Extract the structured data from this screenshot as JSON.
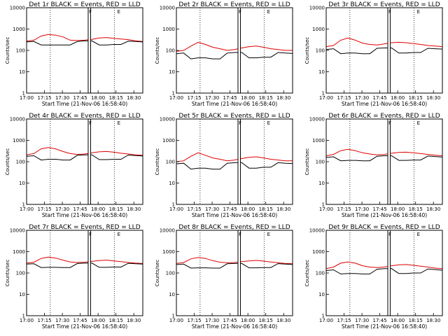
{
  "chart_data": [
    {
      "type": "line",
      "title": "Det 1r BLACK = Events, RED = LLD",
      "xlabel": "Start Time (21-Nov-06 16:58:40)",
      "ylabel": "Counts/sec",
      "yscale": "log",
      "ylim": [
        1,
        10000
      ],
      "xlim": [
        0,
        100
      ],
      "x_ticks": [
        "17:00",
        "17:15",
        "17:30",
        "17:45",
        "18:00",
        "18:15",
        "18:30"
      ],
      "y_ticks": [
        "1",
        "10",
        "100",
        "1000",
        "10000"
      ],
      "markers": [
        "F",
        "E"
      ],
      "series": [
        {
          "color": "#e00000",
          "values": [
            270,
            300,
            470,
            560,
            520,
            430,
            300,
            290,
            300,
            330,
            380,
            400,
            370,
            340,
            320,
            280,
            260
          ]
        },
        {
          "color": "#000000",
          "values": [
            250,
            260,
            180,
            180,
            180,
            180,
            180,
            260,
            280,
            280,
            180,
            180,
            190,
            190,
            270,
            260,
            250
          ]
        }
      ]
    },
    {
      "type": "line",
      "title": "Det 2r BLACK = Events, RED = LLD",
      "xlabel": "Start Time (21-Nov-06 16:58:40)",
      "ylabel": "Counts/sec",
      "yscale": "log",
      "ylim": [
        1,
        10000
      ],
      "xlim": [
        0,
        100
      ],
      "x_ticks": [
        "17:00",
        "17:15",
        "17:30",
        "17:45",
        "18:00",
        "18:15",
        "18:30"
      ],
      "y_ticks": [
        "1",
        "10",
        "100",
        "1000",
        "10000"
      ],
      "markers": [
        "F",
        "E"
      ],
      "series": [
        {
          "color": "#e00000",
          "values": [
            90,
            100,
            160,
            240,
            190,
            140,
            120,
            100,
            110,
            130,
            150,
            160,
            140,
            120,
            110,
            100,
            100
          ]
        },
        {
          "color": "#000000",
          "values": [
            70,
            75,
            40,
            45,
            45,
            40,
            40,
            75,
            80,
            80,
            45,
            45,
            48,
            48,
            80,
            75,
            72
          ]
        }
      ]
    },
    {
      "type": "line",
      "title": "Det 3r BLACK = Events, RED = LLD",
      "xlabel": "Start Time (21-Nov-06 16:58:40)",
      "ylabel": "Counts/sec",
      "yscale": "log",
      "ylim": [
        1,
        10000
      ],
      "xlim": [
        0,
        100
      ],
      "x_ticks": [
        "17:00",
        "17:15",
        "17:30",
        "17:45",
        "18:00",
        "18:15",
        "18:30"
      ],
      "y_ticks": [
        "1",
        "10",
        "100",
        "1000",
        "10000"
      ],
      "markers": [
        "F",
        "E"
      ],
      "series": [
        {
          "color": "#e00000",
          "values": [
            150,
            170,
            300,
            380,
            300,
            220,
            190,
            180,
            200,
            230,
            240,
            230,
            210,
            190,
            170,
            160,
            150
          ]
        },
        {
          "color": "#000000",
          "values": [
            110,
            120,
            70,
            75,
            75,
            70,
            70,
            125,
            130,
            130,
            75,
            75,
            80,
            80,
            125,
            120,
            115
          ]
        }
      ]
    },
    {
      "type": "line",
      "title": "Det 4r BLACK = Events, RED = LLD",
      "xlabel": "Start Time (21-Nov-06 16:58:40)",
      "ylabel": "Counts/sec",
      "yscale": "log",
      "ylim": [
        1,
        10000
      ],
      "xlim": [
        0,
        100
      ],
      "x_ticks": [
        "17:00",
        "17:15",
        "17:30",
        "17:45",
        "18:00",
        "18:15",
        "18:30"
      ],
      "y_ticks": [
        "1",
        "10",
        "100",
        "1000",
        "10000"
      ],
      "markers": [
        "F",
        "E"
      ],
      "series": [
        {
          "color": "#e00000",
          "values": [
            210,
            240,
            400,
            460,
            400,
            300,
            240,
            220,
            230,
            260,
            290,
            300,
            280,
            250,
            230,
            210,
            200
          ]
        },
        {
          "color": "#000000",
          "values": [
            180,
            190,
            120,
            130,
            130,
            120,
            120,
            200,
            210,
            210,
            125,
            125,
            130,
            130,
            205,
            195,
            185
          ]
        }
      ]
    },
    {
      "type": "line",
      "title": "Det 5r BLACK = Events, RED = LLD",
      "xlabel": "Start Time (21-Nov-06 16:58:40)",
      "ylabel": "Counts/sec",
      "yscale": "log",
      "ylim": [
        1,
        10000
      ],
      "xlim": [
        0,
        100
      ],
      "x_ticks": [
        "17:00",
        "17:15",
        "17:30",
        "17:45",
        "18:00",
        "18:15",
        "18:30"
      ],
      "y_ticks": [
        "1",
        "10",
        "100",
        "1000",
        "10000"
      ],
      "markers": [
        "F",
        "E"
      ],
      "series": [
        {
          "color": "#e00000",
          "values": [
            100,
            110,
            180,
            260,
            200,
            150,
            130,
            110,
            120,
            140,
            160,
            170,
            150,
            130,
            120,
            110,
            110
          ]
        },
        {
          "color": "#000000",
          "values": [
            80,
            85,
            45,
            50,
            50,
            45,
            45,
            85,
            90,
            90,
            50,
            50,
            55,
            55,
            90,
            85,
            82
          ]
        }
      ]
    },
    {
      "type": "line",
      "title": "Det 6r BLACK = Events, RED = LLD",
      "xlabel": "Start Time (21-Nov-06 16:58:40)",
      "ylabel": "Counts/sec",
      "yscale": "log",
      "ylim": [
        1,
        10000
      ],
      "xlim": [
        0,
        100
      ],
      "x_ticks": [
        "17:00",
        "17:15",
        "17:30",
        "17:45",
        "18:00",
        "18:15",
        "18:30"
      ],
      "y_ticks": [
        "1",
        "10",
        "100",
        "1000",
        "10000"
      ],
      "markers": [
        "F",
        "E"
      ],
      "series": [
        {
          "color": "#e00000",
          "values": [
            190,
            220,
            330,
            380,
            330,
            260,
            230,
            210,
            220,
            250,
            270,
            280,
            260,
            240,
            220,
            200,
            190
          ]
        },
        {
          "color": "#000000",
          "values": [
            160,
            170,
            110,
            115,
            115,
            110,
            110,
            180,
            190,
            190,
            115,
            115,
            120,
            120,
            185,
            175,
            165
          ]
        }
      ]
    },
    {
      "type": "line",
      "title": "Det 7r BLACK = Events, RED = LLD",
      "xlabel": "Start Time (21-Nov-06 16:58:40)",
      "ylabel": "Counts/sec",
      "yscale": "log",
      "ylim": [
        1,
        10000
      ],
      "xlim": [
        0,
        100
      ],
      "x_ticks": [
        "17:00",
        "17:15",
        "17:30",
        "17:45",
        "18:00",
        "18:15",
        "18:30"
      ],
      "y_ticks": [
        "1",
        "10",
        "100",
        "1000",
        "10000"
      ],
      "markers": [
        "F",
        "E"
      ],
      "series": [
        {
          "color": "#e00000",
          "values": [
            290,
            320,
            480,
            560,
            500,
            400,
            330,
            310,
            320,
            350,
            380,
            400,
            370,
            340,
            310,
            290,
            280
          ]
        },
        {
          "color": "#000000",
          "values": [
            260,
            270,
            180,
            185,
            185,
            180,
            180,
            280,
            290,
            290,
            185,
            185,
            190,
            190,
            285,
            270,
            260
          ]
        }
      ]
    },
    {
      "type": "line",
      "title": "Det 8r BLACK = Events, RED = LLD",
      "xlabel": "Start Time (21-Nov-06 16:58:40)",
      "ylabel": "Counts/sec",
      "yscale": "log",
      "ylim": [
        1,
        10000
      ],
      "xlim": [
        0,
        100
      ],
      "x_ticks": [
        "17:00",
        "17:15",
        "17:30",
        "17:45",
        "18:00",
        "18:15",
        "18:30"
      ],
      "y_ticks": [
        "1",
        "10",
        "100",
        "1000",
        "10000"
      ],
      "markers": [
        "F",
        "E"
      ],
      "series": [
        {
          "color": "#e00000",
          "values": [
            280,
            310,
            460,
            540,
            480,
            380,
            320,
            300,
            310,
            340,
            370,
            390,
            360,
            330,
            300,
            280,
            270
          ]
        },
        {
          "color": "#000000",
          "values": [
            250,
            260,
            170,
            175,
            175,
            170,
            170,
            270,
            280,
            280,
            175,
            175,
            180,
            180,
            275,
            260,
            250
          ]
        }
      ]
    },
    {
      "type": "line",
      "title": "Det 9r BLACK = Events, RED = LLD",
      "xlabel": "Start Time (21-Nov-06 16:58:40)",
      "ylabel": "Counts/sec",
      "yscale": "log",
      "ylim": [
        1,
        10000
      ],
      "xlim": [
        0,
        100
      ],
      "x_ticks": [
        "17:00",
        "17:15",
        "17:30",
        "17:45",
        "18:00",
        "18:15",
        "18:30"
      ],
      "y_ticks": [
        "1",
        "10",
        "100",
        "1000",
        "10000"
      ],
      "markers": [
        "F",
        "E"
      ],
      "series": [
        {
          "color": "#e00000",
          "values": [
            160,
            190,
            290,
            330,
            290,
            220,
            190,
            180,
            190,
            220,
            240,
            250,
            230,
            210,
            190,
            170,
            160
          ]
        },
        {
          "color": "#000000",
          "values": [
            130,
            140,
            90,
            95,
            95,
            90,
            90,
            150,
            160,
            160,
            95,
            95,
            100,
            100,
            155,
            145,
            135
          ]
        }
      ]
    }
  ]
}
